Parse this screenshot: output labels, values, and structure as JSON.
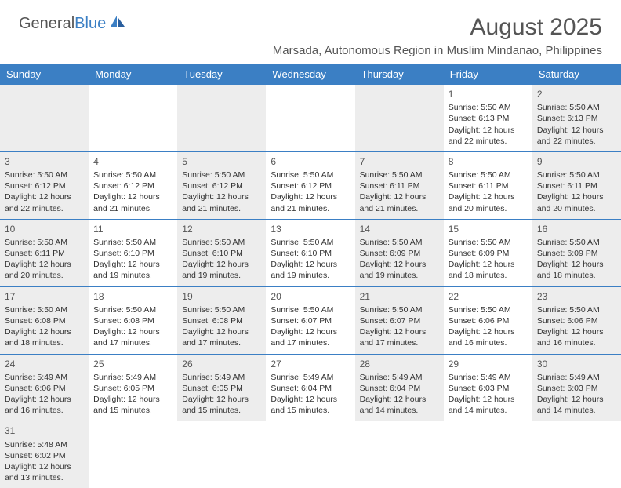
{
  "logo": {
    "text1": "General",
    "text2": "Blue"
  },
  "title": "August 2025",
  "location": "Marsada, Autonomous Region in Muslim Mindanao, Philippines",
  "colors": {
    "header_bg": "#3b7fc4",
    "header_text": "#ffffff",
    "shaded_bg": "#ededed",
    "border": "#3b7fc4",
    "text": "#333333",
    "title_text": "#555555"
  },
  "weekdays": [
    "Sunday",
    "Monday",
    "Tuesday",
    "Wednesday",
    "Thursday",
    "Friday",
    "Saturday"
  ],
  "weeks": [
    [
      {
        "day": "",
        "sunrise": "",
        "sunset": "",
        "daylight1": "",
        "daylight2": "",
        "shaded": true
      },
      {
        "day": "",
        "sunrise": "",
        "sunset": "",
        "daylight1": "",
        "daylight2": "",
        "shaded": false
      },
      {
        "day": "",
        "sunrise": "",
        "sunset": "",
        "daylight1": "",
        "daylight2": "",
        "shaded": true
      },
      {
        "day": "",
        "sunrise": "",
        "sunset": "",
        "daylight1": "",
        "daylight2": "",
        "shaded": false
      },
      {
        "day": "",
        "sunrise": "",
        "sunset": "",
        "daylight1": "",
        "daylight2": "",
        "shaded": true
      },
      {
        "day": "1",
        "sunrise": "Sunrise: 5:50 AM",
        "sunset": "Sunset: 6:13 PM",
        "daylight1": "Daylight: 12 hours",
        "daylight2": "and 22 minutes.",
        "shaded": false
      },
      {
        "day": "2",
        "sunrise": "Sunrise: 5:50 AM",
        "sunset": "Sunset: 6:13 PM",
        "daylight1": "Daylight: 12 hours",
        "daylight2": "and 22 minutes.",
        "shaded": true
      }
    ],
    [
      {
        "day": "3",
        "sunrise": "Sunrise: 5:50 AM",
        "sunset": "Sunset: 6:12 PM",
        "daylight1": "Daylight: 12 hours",
        "daylight2": "and 22 minutes.",
        "shaded": true
      },
      {
        "day": "4",
        "sunrise": "Sunrise: 5:50 AM",
        "sunset": "Sunset: 6:12 PM",
        "daylight1": "Daylight: 12 hours",
        "daylight2": "and 21 minutes.",
        "shaded": false
      },
      {
        "day": "5",
        "sunrise": "Sunrise: 5:50 AM",
        "sunset": "Sunset: 6:12 PM",
        "daylight1": "Daylight: 12 hours",
        "daylight2": "and 21 minutes.",
        "shaded": true
      },
      {
        "day": "6",
        "sunrise": "Sunrise: 5:50 AM",
        "sunset": "Sunset: 6:12 PM",
        "daylight1": "Daylight: 12 hours",
        "daylight2": "and 21 minutes.",
        "shaded": false
      },
      {
        "day": "7",
        "sunrise": "Sunrise: 5:50 AM",
        "sunset": "Sunset: 6:11 PM",
        "daylight1": "Daylight: 12 hours",
        "daylight2": "and 21 minutes.",
        "shaded": true
      },
      {
        "day": "8",
        "sunrise": "Sunrise: 5:50 AM",
        "sunset": "Sunset: 6:11 PM",
        "daylight1": "Daylight: 12 hours",
        "daylight2": "and 20 minutes.",
        "shaded": false
      },
      {
        "day": "9",
        "sunrise": "Sunrise: 5:50 AM",
        "sunset": "Sunset: 6:11 PM",
        "daylight1": "Daylight: 12 hours",
        "daylight2": "and 20 minutes.",
        "shaded": true
      }
    ],
    [
      {
        "day": "10",
        "sunrise": "Sunrise: 5:50 AM",
        "sunset": "Sunset: 6:11 PM",
        "daylight1": "Daylight: 12 hours",
        "daylight2": "and 20 minutes.",
        "shaded": true
      },
      {
        "day": "11",
        "sunrise": "Sunrise: 5:50 AM",
        "sunset": "Sunset: 6:10 PM",
        "daylight1": "Daylight: 12 hours",
        "daylight2": "and 19 minutes.",
        "shaded": false
      },
      {
        "day": "12",
        "sunrise": "Sunrise: 5:50 AM",
        "sunset": "Sunset: 6:10 PM",
        "daylight1": "Daylight: 12 hours",
        "daylight2": "and 19 minutes.",
        "shaded": true
      },
      {
        "day": "13",
        "sunrise": "Sunrise: 5:50 AM",
        "sunset": "Sunset: 6:10 PM",
        "daylight1": "Daylight: 12 hours",
        "daylight2": "and 19 minutes.",
        "shaded": false
      },
      {
        "day": "14",
        "sunrise": "Sunrise: 5:50 AM",
        "sunset": "Sunset: 6:09 PM",
        "daylight1": "Daylight: 12 hours",
        "daylight2": "and 19 minutes.",
        "shaded": true
      },
      {
        "day": "15",
        "sunrise": "Sunrise: 5:50 AM",
        "sunset": "Sunset: 6:09 PM",
        "daylight1": "Daylight: 12 hours",
        "daylight2": "and 18 minutes.",
        "shaded": false
      },
      {
        "day": "16",
        "sunrise": "Sunrise: 5:50 AM",
        "sunset": "Sunset: 6:09 PM",
        "daylight1": "Daylight: 12 hours",
        "daylight2": "and 18 minutes.",
        "shaded": true
      }
    ],
    [
      {
        "day": "17",
        "sunrise": "Sunrise: 5:50 AM",
        "sunset": "Sunset: 6:08 PM",
        "daylight1": "Daylight: 12 hours",
        "daylight2": "and 18 minutes.",
        "shaded": true
      },
      {
        "day": "18",
        "sunrise": "Sunrise: 5:50 AM",
        "sunset": "Sunset: 6:08 PM",
        "daylight1": "Daylight: 12 hours",
        "daylight2": "and 17 minutes.",
        "shaded": false
      },
      {
        "day": "19",
        "sunrise": "Sunrise: 5:50 AM",
        "sunset": "Sunset: 6:08 PM",
        "daylight1": "Daylight: 12 hours",
        "daylight2": "and 17 minutes.",
        "shaded": true
      },
      {
        "day": "20",
        "sunrise": "Sunrise: 5:50 AM",
        "sunset": "Sunset: 6:07 PM",
        "daylight1": "Daylight: 12 hours",
        "daylight2": "and 17 minutes.",
        "shaded": false
      },
      {
        "day": "21",
        "sunrise": "Sunrise: 5:50 AM",
        "sunset": "Sunset: 6:07 PM",
        "daylight1": "Daylight: 12 hours",
        "daylight2": "and 17 minutes.",
        "shaded": true
      },
      {
        "day": "22",
        "sunrise": "Sunrise: 5:50 AM",
        "sunset": "Sunset: 6:06 PM",
        "daylight1": "Daylight: 12 hours",
        "daylight2": "and 16 minutes.",
        "shaded": false
      },
      {
        "day": "23",
        "sunrise": "Sunrise: 5:50 AM",
        "sunset": "Sunset: 6:06 PM",
        "daylight1": "Daylight: 12 hours",
        "daylight2": "and 16 minutes.",
        "shaded": true
      }
    ],
    [
      {
        "day": "24",
        "sunrise": "Sunrise: 5:49 AM",
        "sunset": "Sunset: 6:06 PM",
        "daylight1": "Daylight: 12 hours",
        "daylight2": "and 16 minutes.",
        "shaded": true
      },
      {
        "day": "25",
        "sunrise": "Sunrise: 5:49 AM",
        "sunset": "Sunset: 6:05 PM",
        "daylight1": "Daylight: 12 hours",
        "daylight2": "and 15 minutes.",
        "shaded": false
      },
      {
        "day": "26",
        "sunrise": "Sunrise: 5:49 AM",
        "sunset": "Sunset: 6:05 PM",
        "daylight1": "Daylight: 12 hours",
        "daylight2": "and 15 minutes.",
        "shaded": true
      },
      {
        "day": "27",
        "sunrise": "Sunrise: 5:49 AM",
        "sunset": "Sunset: 6:04 PM",
        "daylight1": "Daylight: 12 hours",
        "daylight2": "and 15 minutes.",
        "shaded": false
      },
      {
        "day": "28",
        "sunrise": "Sunrise: 5:49 AM",
        "sunset": "Sunset: 6:04 PM",
        "daylight1": "Daylight: 12 hours",
        "daylight2": "and 14 minutes.",
        "shaded": true
      },
      {
        "day": "29",
        "sunrise": "Sunrise: 5:49 AM",
        "sunset": "Sunset: 6:03 PM",
        "daylight1": "Daylight: 12 hours",
        "daylight2": "and 14 minutes.",
        "shaded": false
      },
      {
        "day": "30",
        "sunrise": "Sunrise: 5:49 AM",
        "sunset": "Sunset: 6:03 PM",
        "daylight1": "Daylight: 12 hours",
        "daylight2": "and 14 minutes.",
        "shaded": true
      }
    ],
    [
      {
        "day": "31",
        "sunrise": "Sunrise: 5:48 AM",
        "sunset": "Sunset: 6:02 PM",
        "daylight1": "Daylight: 12 hours",
        "daylight2": "and 13 minutes.",
        "shaded": true
      },
      {
        "day": "",
        "sunrise": "",
        "sunset": "",
        "daylight1": "",
        "daylight2": "",
        "shaded": false
      },
      {
        "day": "",
        "sunrise": "",
        "sunset": "",
        "daylight1": "",
        "daylight2": "",
        "shaded": false
      },
      {
        "day": "",
        "sunrise": "",
        "sunset": "",
        "daylight1": "",
        "daylight2": "",
        "shaded": false
      },
      {
        "day": "",
        "sunrise": "",
        "sunset": "",
        "daylight1": "",
        "daylight2": "",
        "shaded": false
      },
      {
        "day": "",
        "sunrise": "",
        "sunset": "",
        "daylight1": "",
        "daylight2": "",
        "shaded": false
      },
      {
        "day": "",
        "sunrise": "",
        "sunset": "",
        "daylight1": "",
        "daylight2": "",
        "shaded": false
      }
    ]
  ]
}
